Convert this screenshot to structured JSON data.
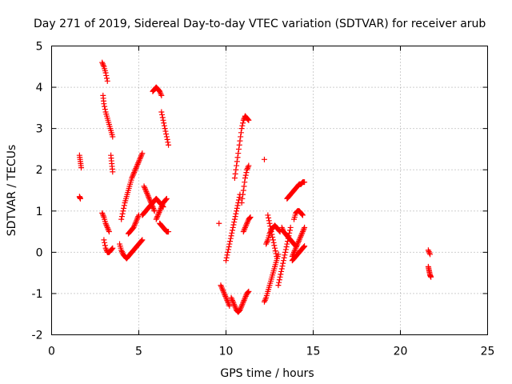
{
  "chart_data": {
    "type": "scatter",
    "title": "Day 271 of 2019, Sidereal Day-to-day VTEC variation (SDTVAR) for receiver arub",
    "xlabel": "GPS time / hours",
    "ylabel": "SDTVAR / TECUs",
    "xlim": [
      0,
      25
    ],
    "ylim": [
      -2,
      5
    ],
    "xticks": [
      0,
      5,
      10,
      15,
      20,
      25
    ],
    "yticks": [
      -2,
      -1,
      0,
      1,
      2,
      3,
      4,
      5
    ],
    "grid": true,
    "marker": "plus",
    "color": "#ff0000",
    "series": [
      {
        "name": "arc01",
        "x": [
          1.6,
          1.65,
          1.7
        ],
        "y": [
          2.35,
          2.2,
          2.05
        ]
      },
      {
        "name": "arc02",
        "x": [
          1.6,
          1.65
        ],
        "y": [
          1.35,
          1.3
        ]
      },
      {
        "name": "arc03",
        "x": [
          2.9,
          3.0,
          3.1,
          3.2
        ],
        "y": [
          4.6,
          4.5,
          4.35,
          4.15
        ]
      },
      {
        "name": "arc04",
        "x": [
          2.95,
          3.0,
          3.1,
          3.2,
          3.3,
          3.4,
          3.5
        ],
        "y": [
          3.8,
          3.6,
          3.4,
          3.25,
          3.1,
          2.95,
          2.8
        ]
      },
      {
        "name": "arc05",
        "x": [
          3.4,
          3.45,
          3.5
        ],
        "y": [
          2.35,
          2.15,
          1.95
        ]
      },
      {
        "name": "arc06",
        "x": [
          2.9,
          3.0,
          3.1,
          3.2,
          3.3
        ],
        "y": [
          0.95,
          0.85,
          0.7,
          0.6,
          0.5
        ]
      },
      {
        "name": "arc07",
        "x": [
          3.0,
          3.1,
          3.2,
          3.3,
          3.4,
          3.5
        ],
        "y": [
          0.3,
          0.1,
          0.0,
          0.0,
          0.05,
          0.1
        ]
      },
      {
        "name": "arc08",
        "x": [
          3.9,
          4.0,
          4.1,
          4.2,
          4.3,
          4.4,
          4.5,
          4.6,
          4.7,
          4.8,
          4.9,
          5.0,
          5.1,
          5.2
        ],
        "y": [
          0.2,
          0.05,
          -0.05,
          -0.1,
          -0.15,
          -0.1,
          -0.05,
          0.0,
          0.05,
          0.1,
          0.15,
          0.2,
          0.25,
          0.3
        ]
      },
      {
        "name": "arc09",
        "x": [
          4.0,
          4.1,
          4.2,
          4.3,
          4.4,
          4.5,
          4.6,
          4.7,
          4.8,
          4.9,
          5.0,
          5.1,
          5.2
        ],
        "y": [
          0.8,
          1.0,
          1.2,
          1.35,
          1.5,
          1.65,
          1.8,
          1.9,
          2.0,
          2.1,
          2.2,
          2.3,
          2.4
        ]
      },
      {
        "name": "arc10",
        "x": [
          4.4,
          4.5,
          4.6,
          4.7,
          4.8,
          4.9,
          5.0
        ],
        "y": [
          0.45,
          0.5,
          0.55,
          0.6,
          0.7,
          0.8,
          0.9
        ]
      },
      {
        "name": "arc11",
        "x": [
          5.3,
          5.4,
          5.5,
          5.6,
          5.7,
          5.8,
          5.9
        ],
        "y": [
          1.6,
          1.5,
          1.4,
          1.3,
          1.2,
          1.1,
          1.0
        ]
      },
      {
        "name": "arc12",
        "x": [
          5.2,
          5.3,
          5.4,
          5.5,
          5.6,
          5.7,
          5.8,
          5.9,
          6.0,
          6.1,
          6.2,
          6.3,
          6.4
        ],
        "y": [
          0.9,
          0.95,
          1.0,
          1.05,
          1.1,
          1.15,
          1.2,
          1.25,
          1.3,
          1.25,
          1.2,
          1.15,
          1.1
        ]
      },
      {
        "name": "arc13",
        "x": [
          6.0,
          6.1,
          6.2,
          6.3,
          6.4,
          6.5,
          6.6
        ],
        "y": [
          0.8,
          0.9,
          1.0,
          1.1,
          1.2,
          1.25,
          1.3
        ]
      },
      {
        "name": "arc14",
        "x": [
          6.2,
          6.3,
          6.4,
          6.5,
          6.6,
          6.7
        ],
        "y": [
          0.7,
          0.65,
          0.6,
          0.55,
          0.5,
          0.5
        ]
      },
      {
        "name": "arc15",
        "x": [
          5.8,
          5.9,
          6.0,
          6.1,
          6.2,
          6.3
        ],
        "y": [
          3.9,
          3.95,
          4.0,
          3.95,
          3.9,
          3.8
        ]
      },
      {
        "name": "arc16",
        "x": [
          6.3,
          6.4,
          6.5,
          6.6,
          6.7
        ],
        "y": [
          3.4,
          3.2,
          3.0,
          2.8,
          2.6
        ]
      },
      {
        "name": "arc17",
        "x": [
          9.6
        ],
        "y": [
          0.7
        ]
      },
      {
        "name": "arc18",
        "x": [
          9.7,
          9.8,
          9.9,
          10.0,
          10.1,
          10.2
        ],
        "y": [
          -0.8,
          -0.9,
          -1.0,
          -1.1,
          -1.2,
          -1.3
        ]
      },
      {
        "name": "arc19",
        "x": [
          10.0,
          10.1,
          10.2,
          10.3,
          10.4,
          10.5,
          10.6,
          10.7,
          10.8
        ],
        "y": [
          -0.2,
          0.0,
          0.2,
          0.4,
          0.6,
          0.8,
          1.0,
          1.2,
          1.4
        ]
      },
      {
        "name": "arc20",
        "x": [
          10.5,
          10.6,
          10.7,
          10.8,
          10.9,
          11.0,
          11.1
        ],
        "y": [
          1.8,
          2.1,
          2.4,
          2.7,
          3.0,
          3.2,
          3.3
        ]
      },
      {
        "name": "arc21",
        "x": [
          10.3,
          10.4,
          10.5,
          10.6,
          10.7,
          10.8,
          10.9,
          11.0,
          11.1,
          11.2,
          11.3
        ],
        "y": [
          -1.1,
          -1.2,
          -1.3,
          -1.4,
          -1.45,
          -1.4,
          -1.3,
          -1.2,
          -1.1,
          -1.0,
          -0.95
        ]
      },
      {
        "name": "arc22",
        "x": [
          10.9,
          11.0,
          11.1,
          11.2,
          11.3
        ],
        "y": [
          1.2,
          1.5,
          1.8,
          2.0,
          2.1
        ]
      },
      {
        "name": "arc23",
        "x": [
          11.0,
          11.1,
          11.2,
          11.3,
          11.4
        ],
        "y": [
          0.5,
          0.6,
          0.7,
          0.8,
          0.85
        ]
      },
      {
        "name": "arc24",
        "x": [
          11.1,
          11.2,
          11.3
        ],
        "y": [
          3.3,
          3.25,
          3.2
        ]
      },
      {
        "name": "arc25",
        "x": [
          12.2
        ],
        "y": [
          2.25
        ]
      },
      {
        "name": "arc26",
        "x": [
          12.2,
          12.3,
          12.4,
          12.5,
          12.6,
          12.7,
          12.8,
          12.9,
          13.0
        ],
        "y": [
          -1.2,
          -1.1,
          -0.95,
          -0.8,
          -0.65,
          -0.5,
          -0.35,
          -0.2,
          -0.05
        ]
      },
      {
        "name": "arc27",
        "x": [
          12.3,
          12.4,
          12.5,
          12.6,
          12.7,
          12.8,
          12.9,
          13.0,
          13.1
        ],
        "y": [
          0.2,
          0.3,
          0.45,
          0.55,
          0.6,
          0.65,
          0.6,
          0.55,
          0.5
        ]
      },
      {
        "name": "arc28",
        "x": [
          12.4,
          12.5,
          12.6,
          12.7,
          12.8,
          12.9
        ],
        "y": [
          0.9,
          0.7,
          0.5,
          0.3,
          0.1,
          -0.1
        ]
      },
      {
        "name": "arc29",
        "x": [
          13.0,
          13.1,
          13.2,
          13.3,
          13.4,
          13.5,
          13.6,
          13.7
        ],
        "y": [
          -0.8,
          -0.6,
          -0.4,
          -0.2,
          0.0,
          0.2,
          0.4,
          0.6
        ]
      },
      {
        "name": "arc30",
        "x": [
          13.2,
          13.3,
          13.4,
          13.5,
          13.6,
          13.7,
          13.8,
          13.9,
          14.0
        ],
        "y": [
          0.6,
          0.5,
          0.45,
          0.4,
          0.35,
          0.3,
          0.25,
          0.2,
          0.15
        ]
      },
      {
        "name": "arc31",
        "x": [
          13.5,
          13.6,
          13.7,
          13.8,
          13.9,
          14.0,
          14.1,
          14.2,
          14.3,
          14.4,
          14.5
        ],
        "y": [
          1.3,
          1.35,
          1.4,
          1.45,
          1.5,
          1.55,
          1.6,
          1.65,
          1.65,
          1.7,
          1.7
        ]
      },
      {
        "name": "arc32",
        "x": [
          13.8,
          13.9,
          14.0,
          14.1,
          14.2,
          14.3,
          14.4,
          14.5
        ],
        "y": [
          -0.1,
          0.0,
          0.1,
          0.2,
          0.3,
          0.4,
          0.5,
          0.6
        ]
      },
      {
        "name": "arc33",
        "x": [
          13.9,
          14.0,
          14.1,
          14.2,
          14.3,
          14.4
        ],
        "y": [
          0.8,
          0.95,
          1.0,
          1.0,
          0.95,
          0.9
        ]
      },
      {
        "name": "arc34",
        "x": [
          13.8,
          13.9,
          14.0,
          14.1,
          14.2,
          14.3,
          14.4,
          14.5
        ],
        "y": [
          -0.2,
          -0.15,
          -0.1,
          -0.05,
          0.0,
          0.05,
          0.1,
          0.15
        ]
      },
      {
        "name": "arc35",
        "x": [
          21.6,
          21.7
        ],
        "y": [
          0.05,
          -0.05
        ]
      },
      {
        "name": "arc36",
        "x": [
          21.6,
          21.65,
          21.7,
          21.75
        ],
        "y": [
          -0.35,
          -0.45,
          -0.55,
          -0.6
        ]
      }
    ]
  }
}
